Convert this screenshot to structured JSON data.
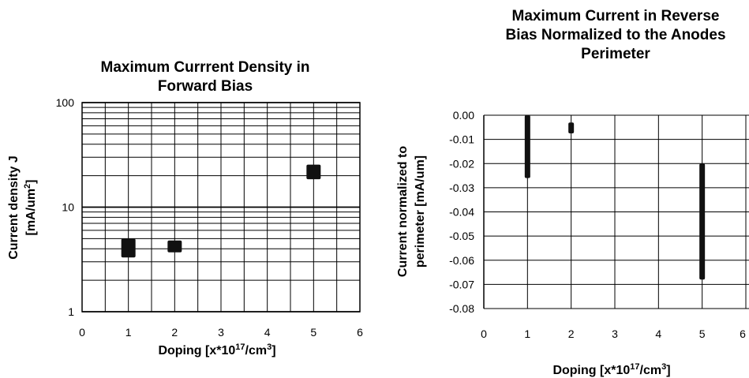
{
  "chart_data": [
    {
      "type": "scatter",
      "title_lines": [
        "Maximum Currrent Density in",
        "Forward Bias"
      ],
      "xlabel": "Doping [x*10",
      "xlabel_sup": "17",
      "xlabel_tail": "/cm",
      "xlabel_sup2": "3",
      "xlabel_end": "]",
      "ylabel_line1": "Current density J",
      "ylabel_line2": "[mA/um",
      "ylabel_sup": "2",
      "ylabel_end": "]",
      "xlim": [
        0,
        6
      ],
      "ylim": [
        1,
        100
      ],
      "yscale": "log",
      "grid": true,
      "x_ticks": [
        "0",
        "1",
        "2",
        "3",
        "4",
        "5",
        "6"
      ],
      "y_ticks": [
        "1",
        "10",
        "100"
      ],
      "series": [
        {
          "points": [
            {
              "x": 1,
              "y_low": 3.3,
              "y_high": 5.0
            },
            {
              "x": 2,
              "y_low": 3.7,
              "y_high": 4.8
            },
            {
              "x": 5,
              "y_low": 18.5,
              "y_high": 25.5
            }
          ]
        }
      ]
    },
    {
      "type": "scatter",
      "title_lines": [
        "Maximum Current in Reverse",
        "Bias Normalized to the Anodes",
        "Perimeter"
      ],
      "xlabel": "Doping [x*10",
      "xlabel_sup": "17",
      "xlabel_tail": "/cm",
      "xlabel_sup2": "3",
      "xlabel_end": "]",
      "ylabel_line1": "Current normalized to",
      "ylabel_line2": "perimeter [mA/um]",
      "xlim": [
        0,
        6
      ],
      "ylim": [
        -0.08,
        0.0
      ],
      "grid": true,
      "x_ticks": [
        "0",
        "1",
        "2",
        "3",
        "4",
        "5",
        "6"
      ],
      "y_ticks": [
        "0.00",
        "-0.01",
        "-0.02",
        "-0.03",
        "-0.04",
        "-0.05",
        "-0.06",
        "-0.07",
        "-0.08"
      ],
      "series": [
        {
          "points": [
            {
              "x": 1,
              "y_low": -0.026,
              "y_high": 0.0
            },
            {
              "x": 2,
              "y_low": -0.0075,
              "y_high": -0.003
            },
            {
              "x": 5,
              "y_low": -0.068,
              "y_high": -0.02
            }
          ]
        }
      ]
    }
  ]
}
